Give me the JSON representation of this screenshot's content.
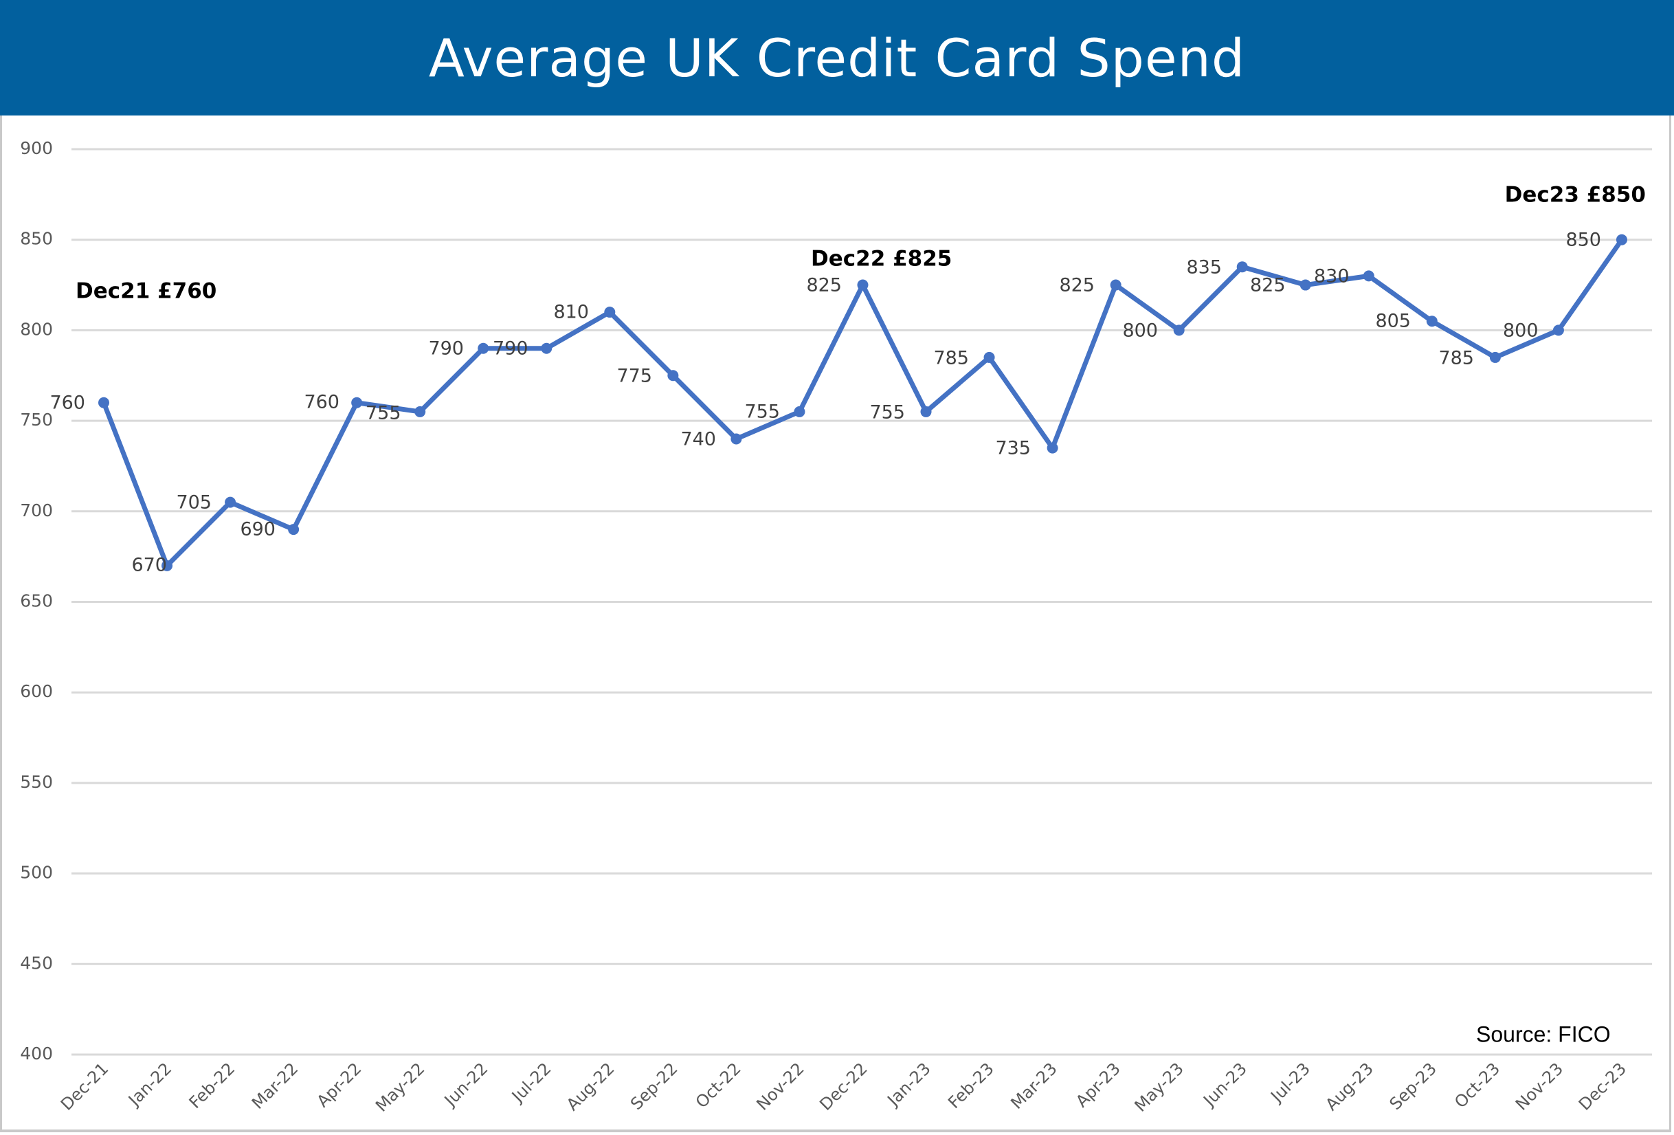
{
  "header": {
    "title": "Average UK Credit Card Spend"
  },
  "colors": {
    "header_bg": "#02609E",
    "line": "#4472C4",
    "grid": "#d9d9d9",
    "tick_text": "#595959"
  },
  "source": "Source: FICO",
  "annotations": [
    {
      "text": "Dec21 £760",
      "index": 0
    },
    {
      "text": "Dec22 £825",
      "index": 12
    },
    {
      "text": "Dec23 £850",
      "index": 24
    }
  ],
  "chart_data": {
    "type": "line",
    "title": "Average UK Credit Card Spend",
    "xlabel": "",
    "ylabel": "",
    "ylim": [
      400,
      900
    ],
    "yticks": [
      400,
      450,
      500,
      550,
      600,
      650,
      700,
      750,
      800,
      850,
      900
    ],
    "grid": true,
    "legend": "none",
    "categories": [
      "Dec-21",
      "Jan-22",
      "Feb-22",
      "Mar-22",
      "Apr-22",
      "May-22",
      "Jun-22",
      "Jul-22",
      "Aug-22",
      "Sep-22",
      "Oct-22",
      "Nov-22",
      "Dec-22",
      "Jan-23",
      "Feb-23",
      "Mar-23",
      "Apr-23",
      "May-23",
      "Jun-23",
      "Jul-23",
      "Aug-23",
      "Sep-23",
      "Oct-23",
      "Nov-23",
      "Dec-23"
    ],
    "series": [
      {
        "name": "Average UK Credit Card Spend (£)",
        "values": [
          760,
          670,
          705,
          690,
          760,
          755,
          790,
          790,
          810,
          775,
          740,
          755,
          825,
          755,
          785,
          735,
          825,
          800,
          835,
          825,
          830,
          805,
          785,
          800,
          850
        ]
      }
    ],
    "annotations": [
      "Dec21 £760",
      "Dec22 £825",
      "Dec23 £850"
    ],
    "source": "Source: FICO"
  }
}
